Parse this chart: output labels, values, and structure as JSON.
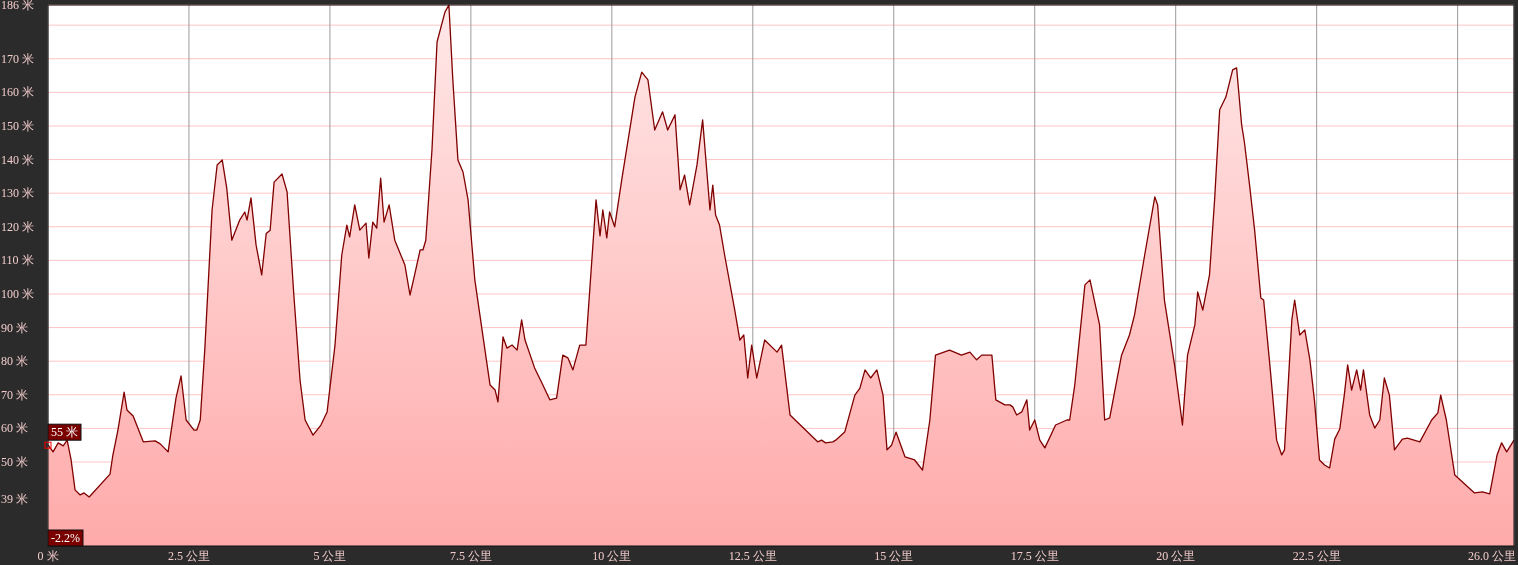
{
  "chart_data": {
    "type": "area",
    "xlim": [
      0,
      26.0
    ],
    "ylim": [
      25,
      186
    ],
    "xticks": [
      {
        "value": 0,
        "label": "0 米"
      },
      {
        "value": 2.5,
        "label": "2.5 公里"
      },
      {
        "value": 5,
        "label": "5 公里"
      },
      {
        "value": 7.5,
        "label": "7.5 公里"
      },
      {
        "value": 10,
        "label": "10 公里"
      },
      {
        "value": 12.5,
        "label": "12.5 公里"
      },
      {
        "value": 15,
        "label": "15 公里"
      },
      {
        "value": 17.5,
        "label": "17.5 公里"
      },
      {
        "value": 20,
        "label": "20 公里"
      },
      {
        "value": 22.5,
        "label": "22.5 公里"
      },
      {
        "value": 25,
        "label": null
      },
      {
        "value": 26.0,
        "label": "26.0 公里"
      }
    ],
    "yticks": [
      {
        "value": 39,
        "label": "39 米"
      },
      {
        "value": 50,
        "label": "50 米"
      },
      {
        "value": 60,
        "label": "60 米"
      },
      {
        "value": 70,
        "label": "70 米"
      },
      {
        "value": 80,
        "label": "80 米"
      },
      {
        "value": 90,
        "label": "90 米"
      },
      {
        "value": 100,
        "label": "100 米"
      },
      {
        "value": 110,
        "label": "110 米"
      },
      {
        "value": 120,
        "label": "120 米"
      },
      {
        "value": 130,
        "label": "130 米"
      },
      {
        "value": 140,
        "label": "140 米"
      },
      {
        "value": 150,
        "label": "150 米"
      },
      {
        "value": 160,
        "label": "160 米"
      },
      {
        "value": 170,
        "label": "170 米"
      },
      {
        "value": 180,
        "label": null
      },
      {
        "value": 186,
        "label": "186 米"
      }
    ],
    "grid": true,
    "annotations": [
      {
        "text": "55 米",
        "x": 0,
        "y": 55
      },
      "-2.2%"
    ],
    "series": [
      {
        "color": "#800000",
        "x": [
          0,
          0.09,
          0.18,
          0.27,
          0.34,
          0.41,
          0.48,
          0.57,
          0.64,
          0.73,
          1.1,
          1.15,
          1.24,
          1.35,
          1.4,
          1.51,
          1.69,
          1.9,
          1.99,
          2.13,
          2.27,
          2.36,
          2.45,
          2.59,
          2.64,
          2.7,
          2.78,
          2.91,
          3.0,
          3.09,
          3.17,
          3.26,
          3.4,
          3.49,
          3.53,
          3.6,
          3.69,
          3.79,
          3.87,
          3.94,
          4.01,
          4.15,
          4.24,
          4.36,
          4.47,
          4.56,
          4.7,
          4.84,
          4.95,
          5.09,
          5.21,
          5.3,
          5.35,
          5.44,
          5.53,
          5.64,
          5.69,
          5.76,
          5.83,
          5.9,
          5.96,
          6.05,
          6.15,
          6.33,
          6.42,
          6.49,
          6.6,
          6.65,
          6.7,
          6.81,
          6.9,
          7.04,
          7.11,
          7.18,
          7.27,
          7.36,
          7.45,
          7.57,
          7.75,
          7.84,
          7.93,
          7.98,
          8.07,
          8.14,
          8.23,
          8.32,
          8.4,
          8.46,
          8.63,
          8.76,
          8.9,
          9.02,
          9.13,
          9.22,
          9.31,
          9.43,
          9.54,
          9.72,
          9.79,
          9.84,
          9.91,
          9.96,
          10.05,
          10.18,
          10.41,
          10.53,
          10.64,
          10.76,
          10.9,
          10.99,
          11.12,
          11.21,
          11.29,
          11.38,
          11.51,
          11.61,
          11.74,
          11.79,
          11.84,
          11.91,
          12.0,
          12.18,
          12.27,
          12.34,
          12.41,
          12.48,
          12.57,
          12.71,
          12.93,
          13.01,
          13.16,
          13.65,
          13.72,
          13.79,
          13.92,
          13.97,
          14.13,
          14.31,
          14.4,
          14.49,
          14.59,
          14.7,
          14.81,
          14.88,
          14.96,
          15.04,
          15.2,
          15.37,
          15.51,
          15.64,
          15.74,
          15.99,
          16.2,
          16.35,
          16.47,
          16.56,
          16.74,
          16.81,
          16.97,
          17.06,
          17.11,
          17.18,
          17.27,
          17.36,
          17.41,
          17.5,
          17.59,
          17.68,
          17.87,
          18.07,
          18.12,
          18.21,
          18.39,
          18.48,
          18.65,
          18.74,
          18.83,
          19.04,
          19.18,
          19.27,
          19.45,
          19.63,
          19.68,
          19.8,
          19.98,
          20.12,
          20.21,
          20.34,
          20.39,
          20.48,
          20.6,
          20.69,
          20.78,
          20.89,
          21.01,
          21.08,
          21.17,
          21.22,
          21.31,
          21.4,
          21.51,
          21.56,
          21.67,
          21.79,
          21.88,
          21.93,
          22.06,
          22.11,
          22.2,
          22.29,
          22.38,
          22.46,
          22.55,
          22.64,
          22.73,
          22.82,
          22.91,
          22.99,
          23.05,
          23.12,
          23.21,
          23.28,
          23.33,
          23.44,
          23.53,
          23.62,
          23.7,
          23.79,
          23.88,
          24.02,
          24.11,
          24.33,
          24.54,
          24.65,
          24.7,
          24.8,
          24.95,
          25.3,
          25.44,
          25.57,
          25.7,
          25.78,
          25.87,
          26.0
        ],
        "values": [
          55.1,
          53,
          55.7,
          54.8,
          56.5,
          50.6,
          41.7,
          40.2,
          40.8,
          39.6,
          46.4,
          52,
          59.5,
          70.8,
          65.5,
          63.7,
          56,
          56.3,
          55.4,
          53,
          69,
          75.6,
          62.5,
          59.5,
          59.5,
          62.5,
          83.3,
          125,
          138.4,
          139.9,
          131.5,
          116,
          122,
          124.4,
          122,
          128.6,
          114.6,
          105.7,
          118,
          119,
          133.3,
          135.7,
          130.4,
          99.7,
          74.4,
          62.5,
          58,
          61,
          64.9,
          84.8,
          111.6,
          120.5,
          117,
          126.5,
          119,
          121.1,
          110.7,
          121.4,
          119.6,
          134.5,
          121.4,
          126.5,
          116,
          108.6,
          99.7,
          104.8,
          113.1,
          113.1,
          116,
          142.9,
          175,
          183.9,
          186,
          163.7,
          139.9,
          136.3,
          128,
          104.2,
          83.3,
          72.9,
          71.4,
          67.9,
          87.2,
          83.9,
          84.8,
          83.3,
          92.3,
          86.3,
          78,
          73.5,
          68.5,
          69,
          81.8,
          81,
          77.4,
          84.8,
          84.8,
          128,
          117.3,
          125,
          116.7,
          124.4,
          120,
          134.5,
          158.6,
          166,
          163.7,
          148.8,
          154.2,
          148.8,
          153.3,
          131,
          135.4,
          126.5,
          138.4,
          151.8,
          125,
          132.4,
          123.5,
          120.5,
          111.6,
          95.2,
          86.3,
          87.8,
          75,
          84.8,
          75,
          86.3,
          82.7,
          84.8,
          64,
          56,
          56.5,
          55.7,
          56,
          56.5,
          58.9,
          69.9,
          72,
          77.4,
          75,
          77.4,
          69.9,
          53.6,
          55,
          58.9,
          51.5,
          50.6,
          47.6,
          62.5,
          81.8,
          83.3,
          81.8,
          82.7,
          80.4,
          81.8,
          81.8,
          68.5,
          67,
          67,
          66.4,
          64,
          64.9,
          68.5,
          59.5,
          62.5,
          56.5,
          54.2,
          61,
          62.5,
          62.5,
          72.9,
          102.7,
          104.2,
          90.8,
          62.5,
          63.1,
          81.8,
          87.8,
          93.8,
          111.6,
          128.9,
          126.5,
          98.2,
          78.9,
          61,
          81.8,
          90.8,
          100.6,
          95.2,
          105.7,
          128,
          154.8,
          158.6,
          166.7,
          167.3,
          150.3,
          145,
          132.4,
          119,
          98.8,
          98.2,
          78.9,
          56.5,
          52.1,
          53.6,
          92.3,
          98.2,
          87.8,
          89.3,
          80.4,
          68.5,
          50.6,
          49.1,
          48.2,
          56.8,
          59.8,
          69.9,
          78.9,
          71.4,
          77.4,
          71.4,
          77.4,
          64,
          60.1,
          62.5,
          75,
          69.9,
          53.6,
          56.8,
          57.1,
          56,
          62.5,
          64.6,
          69.9,
          62.5,
          46.1,
          40.8,
          41.1,
          40.5,
          52.1,
          55.7,
          53,
          56.5
        ]
      }
    ]
  }
}
